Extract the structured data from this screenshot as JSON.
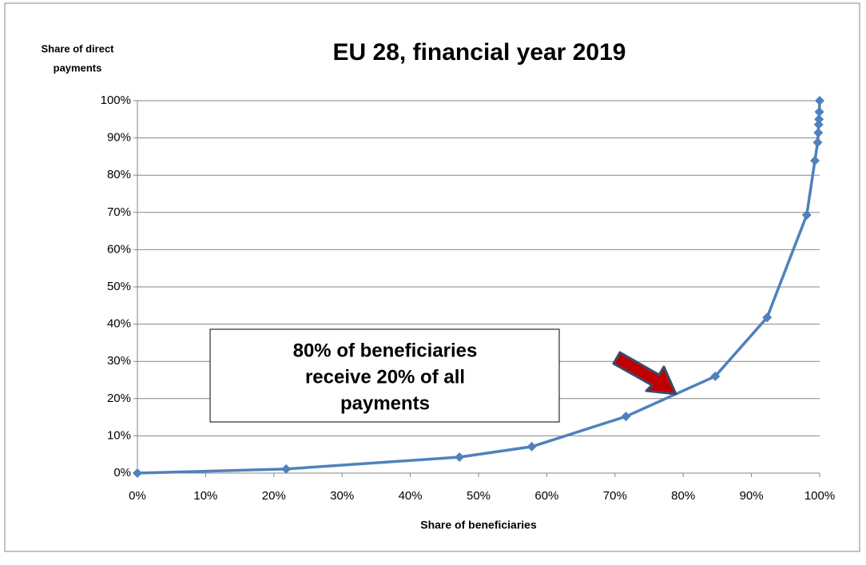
{
  "chart_data": {
    "type": "line",
    "title": "EU 28, financial year 2019",
    "y_label_lines": [
      "Share of direct",
      "payments"
    ],
    "x_label": "Share of beneficiaries",
    "annotation_lines": [
      "80% of beneficiaries",
      "receive 20% of all",
      "payments"
    ],
    "series": [
      {
        "color": "#4f81bd",
        "x": [
          0,
          21.8,
          47.2,
          57.8,
          71.6,
          84.7,
          92.3,
          98.1,
          99.3,
          99.7,
          99.8,
          99.85,
          99.9,
          99.95,
          100
        ],
        "values": [
          0,
          1.1,
          4.3,
          7.1,
          15.2,
          26,
          41.8,
          69.3,
          83.9,
          88.8,
          91.4,
          93.6,
          95,
          97,
          100
        ]
      }
    ],
    "xlim": [
      0,
      100
    ],
    "ylim": [
      0,
      100
    ],
    "xticks": [
      {
        "value": 0,
        "label": "0%"
      },
      {
        "value": 10,
        "label": "10%"
      },
      {
        "value": 20,
        "label": "20%"
      },
      {
        "value": 30,
        "label": "30%"
      },
      {
        "value": 40,
        "label": "40%"
      },
      {
        "value": 50,
        "label": "50%"
      },
      {
        "value": 60,
        "label": "60%"
      },
      {
        "value": 70,
        "label": "70%"
      },
      {
        "value": 80,
        "label": "80%"
      },
      {
        "value": 90,
        "label": "90%"
      },
      {
        "value": 100,
        "label": "100%"
      }
    ],
    "yticks": [
      {
        "value": 0,
        "label": "0%"
      },
      {
        "value": 10,
        "label": "10%"
      },
      {
        "value": 20,
        "label": "20%"
      },
      {
        "value": 30,
        "label": "30%"
      },
      {
        "value": 40,
        "label": "40%"
      },
      {
        "value": 50,
        "label": "50%"
      },
      {
        "value": 60,
        "label": "60%"
      },
      {
        "value": 70,
        "label": "70%"
      },
      {
        "value": 80,
        "label": "80%"
      },
      {
        "value": 90,
        "label": "90%"
      },
      {
        "value": 100,
        "label": "100%"
      }
    ],
    "grid": true
  }
}
